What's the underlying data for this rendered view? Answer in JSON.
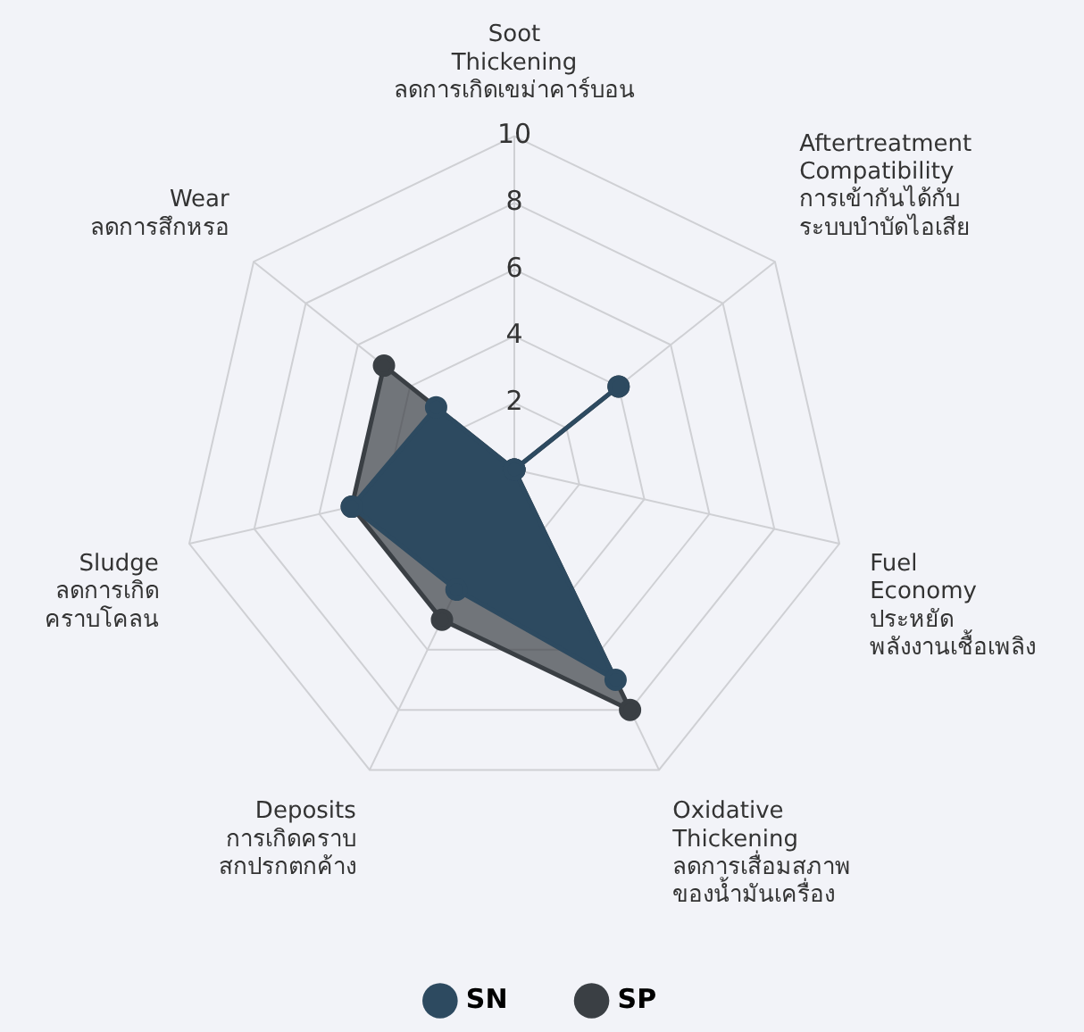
{
  "chart_data": {
    "type": "radar",
    "categories": [
      "Soot\nThickening\nลดการเกิดเขม่าคาร์บอน",
      "Aftertreatment\nCompatibility\nการเข้ากันได้กับ\nระบบบำบัดไอเสีย",
      "Fuel\nEconomy\nประหยัด\nพลังงานเชื้อเพลิง",
      "Oxidative\nThickening\nลดการเสื่อมสภาพ\nของน้ำมันเครื่อง",
      "Deposits\nการเกิดคราบ\nสกปรกตกค้าง",
      "Sludge\nลดการเกิด\nคราบโคลน",
      "Wear\nลดการสึกหรอ"
    ],
    "series": [
      {
        "name": "SN",
        "color": "#2d4a60",
        "values": [
          0,
          4,
          0,
          7,
          4,
          5,
          3
        ]
      },
      {
        "name": "SP",
        "color": "#3a3f44",
        "values": [
          0,
          4,
          0,
          8,
          5,
          5,
          5
        ]
      }
    ],
    "ylim": [
      0,
      10
    ],
    "yticks": [
      2,
      4,
      6,
      8,
      10
    ],
    "grid": true,
    "legend": "bottom",
    "marker": "circle"
  }
}
